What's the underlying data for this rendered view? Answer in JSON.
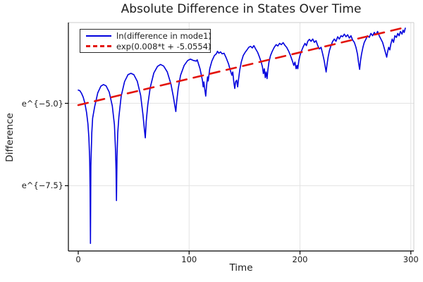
{
  "chart_data": {
    "type": "line",
    "title": "Absolute Difference in States Over Time",
    "xlabel": "Time",
    "ylabel": "Difference",
    "x_axis": {
      "lim": [
        -8.9,
        302.7
      ],
      "ticks": [
        {
          "value": 0,
          "label": "0"
        },
        {
          "value": 100,
          "label": "100"
        },
        {
          "value": 200,
          "label": "200"
        },
        {
          "value": 300,
          "label": "300"
        }
      ]
    },
    "y_axis": {
      "scale": "ln",
      "lim_ln": [
        -9.48,
        -2.55
      ],
      "ticks": [
        {
          "value": -5.0,
          "label": "e^{−5.0}"
        },
        {
          "value": -7.5,
          "label": "e^{−7.5}"
        }
      ]
    },
    "grid": true,
    "legend_position": "top-left",
    "colors": {
      "series1": "#0000dd",
      "series2": "#e3140c",
      "grid": "#e3e3e3",
      "frame": "#cccccc",
      "axis": "#000000",
      "text": "#1c1c1c"
    },
    "series": [
      {
        "name": "ln(difference in mode1)",
        "color": "#0000dd",
        "linestyle": "solid",
        "points": [
          [
            0,
            -4.6
          ],
          [
            1.5,
            -4.62
          ],
          [
            3,
            -4.7
          ],
          [
            4.5,
            -4.82
          ],
          [
            6,
            -5.0
          ],
          [
            7.5,
            -5.28
          ],
          [
            8.7,
            -5.62
          ],
          [
            9.6,
            -6.05
          ],
          [
            10.3,
            -6.7
          ],
          [
            10.7,
            -7.6
          ],
          [
            11,
            -9.25
          ],
          [
            11.4,
            -6.9
          ],
          [
            12.2,
            -5.9
          ],
          [
            13,
            -5.45
          ],
          [
            14.8,
            -5.1
          ],
          [
            17.6,
            -4.68
          ],
          [
            20.4,
            -4.48
          ],
          [
            22.8,
            -4.43
          ],
          [
            25.1,
            -4.47
          ],
          [
            27.9,
            -4.66
          ],
          [
            30.7,
            -5.08
          ],
          [
            32.6,
            -5.65
          ],
          [
            33.6,
            -6.4
          ],
          [
            34.1,
            -7.0
          ],
          [
            34.5,
            -7.95
          ],
          [
            35.0,
            -6.6
          ],
          [
            35.6,
            -5.9
          ],
          [
            36.6,
            -5.42
          ],
          [
            38.7,
            -4.78
          ],
          [
            41.8,
            -4.34
          ],
          [
            44.9,
            -4.13
          ],
          [
            47.5,
            -4.09
          ],
          [
            50.1,
            -4.13
          ],
          [
            53.2,
            -4.33
          ],
          [
            56.3,
            -4.76
          ],
          [
            58.4,
            -5.35
          ],
          [
            59.5,
            -5.75
          ],
          [
            60.5,
            -6.05
          ],
          [
            61.3,
            -5.55
          ],
          [
            62.7,
            -5.05
          ],
          [
            64.9,
            -4.52
          ],
          [
            68.2,
            -4.08
          ],
          [
            71.5,
            -3.88
          ],
          [
            74.2,
            -3.82
          ],
          [
            77,
            -3.87
          ],
          [
            80.3,
            -4.05
          ],
          [
            83.6,
            -4.42
          ],
          [
            85.8,
            -4.8
          ],
          [
            87,
            -5.05
          ],
          [
            88,
            -5.25
          ],
          [
            88.8,
            -4.95
          ],
          [
            90.2,
            -4.55
          ],
          [
            92.3,
            -4.15
          ],
          [
            95.5,
            -3.85
          ],
          [
            98.7,
            -3.7
          ],
          [
            101.2,
            -3.66
          ],
          [
            103.9,
            -3.7
          ],
          [
            106.5,
            -3.72
          ],
          [
            107.3,
            -3.68
          ],
          [
            109.8,
            -3.95
          ],
          [
            112,
            -4.3
          ],
          [
            112.7,
            -4.5
          ],
          [
            113.3,
            -4.35
          ],
          [
            114.2,
            -4.6
          ],
          [
            115,
            -4.78
          ],
          [
            115.8,
            -4.45
          ],
          [
            116.6,
            -4.2
          ],
          [
            117.2,
            -4.32
          ],
          [
            118.6,
            -3.95
          ],
          [
            120.5,
            -3.72
          ],
          [
            122.8,
            -3.55
          ],
          [
            124.5,
            -3.5
          ],
          [
            125.6,
            -3.42
          ],
          [
            126.8,
            -3.48
          ],
          [
            128.3,
            -3.44
          ],
          [
            129.8,
            -3.5
          ],
          [
            131.5,
            -3.48
          ],
          [
            133.4,
            -3.62
          ],
          [
            135.5,
            -3.8
          ],
          [
            137.2,
            -4.0
          ],
          [
            138.6,
            -4.15
          ],
          [
            139.4,
            -4.05
          ],
          [
            140.3,
            -4.35
          ],
          [
            141.2,
            -4.55
          ],
          [
            141.9,
            -4.35
          ],
          [
            142.9,
            -4.3
          ],
          [
            143.8,
            -4.5
          ],
          [
            144.5,
            -4.3
          ],
          [
            145.6,
            -4.0
          ],
          [
            147,
            -3.75
          ],
          [
            148.8,
            -3.55
          ],
          [
            150.6,
            -3.45
          ],
          [
            152.2,
            -3.38
          ],
          [
            153.8,
            -3.3
          ],
          [
            155.4,
            -3.27
          ],
          [
            157,
            -3.32
          ],
          [
            158.4,
            -3.25
          ],
          [
            160,
            -3.35
          ],
          [
            161.8,
            -3.45
          ],
          [
            163.5,
            -3.6
          ],
          [
            165,
            -3.75
          ],
          [
            166.2,
            -3.9
          ],
          [
            167,
            -4.1
          ],
          [
            167.8,
            -3.95
          ],
          [
            168.7,
            -4.22
          ],
          [
            169.5,
            -4.05
          ],
          [
            170.3,
            -4.25
          ],
          [
            171,
            -4.0
          ],
          [
            172,
            -3.75
          ],
          [
            173.4,
            -3.55
          ],
          [
            175,
            -3.42
          ],
          [
            176.8,
            -3.3
          ],
          [
            178.5,
            -3.22
          ],
          [
            180,
            -3.26
          ],
          [
            181.6,
            -3.18
          ],
          [
            183.2,
            -3.22
          ],
          [
            184.8,
            -3.16
          ],
          [
            186.4,
            -3.24
          ],
          [
            188,
            -3.3
          ],
          [
            189.8,
            -3.42
          ],
          [
            191.4,
            -3.55
          ],
          [
            193,
            -3.7
          ],
          [
            194.4,
            -3.85
          ],
          [
            195.5,
            -3.75
          ],
          [
            196.5,
            -3.95
          ],
          [
            197.3,
            -3.85
          ],
          [
            198,
            -3.95
          ],
          [
            199,
            -3.7
          ],
          [
            200,
            -3.55
          ],
          [
            201.5,
            -3.4
          ],
          [
            203,
            -3.28
          ],
          [
            204.5,
            -3.18
          ],
          [
            205.8,
            -3.25
          ],
          [
            207,
            -3.12
          ],
          [
            208.5,
            -3.06
          ],
          [
            210,
            -3.12
          ],
          [
            211.5,
            -3.05
          ],
          [
            213,
            -3.15
          ],
          [
            214.5,
            -3.1
          ],
          [
            216,
            -3.25
          ],
          [
            217.5,
            -3.35
          ],
          [
            219,
            -3.3
          ],
          [
            220.5,
            -3.5
          ],
          [
            221.8,
            -3.7
          ],
          [
            222.8,
            -3.9
          ],
          [
            223.6,
            -4.05
          ],
          [
            224.3,
            -3.85
          ],
          [
            225.4,
            -3.6
          ],
          [
            226.6,
            -3.4
          ],
          [
            228,
            -3.25
          ],
          [
            229.5,
            -3.12
          ],
          [
            231,
            -3.05
          ],
          [
            232.5,
            -3.12
          ],
          [
            234,
            -2.98
          ],
          [
            235.5,
            -3.05
          ],
          [
            237,
            -2.95
          ],
          [
            238.5,
            -2.98
          ],
          [
            240,
            -2.9
          ],
          [
            241.5,
            -2.98
          ],
          [
            243,
            -2.92
          ],
          [
            244.5,
            -3.02
          ],
          [
            246,
            -2.95
          ],
          [
            247.5,
            -3.08
          ],
          [
            249,
            -3.15
          ],
          [
            250.5,
            -3.3
          ],
          [
            251.8,
            -3.5
          ],
          [
            252.8,
            -3.75
          ],
          [
            253.8,
            -3.97
          ],
          [
            254.6,
            -3.7
          ],
          [
            255.6,
            -3.5
          ],
          [
            256.8,
            -3.3
          ],
          [
            258,
            -3.15
          ],
          [
            259.5,
            -3.05
          ],
          [
            261,
            -2.95
          ],
          [
            262.5,
            -3.0
          ],
          [
            264,
            -2.88
          ],
          [
            265.5,
            -2.95
          ],
          [
            267,
            -2.85
          ],
          [
            268.5,
            -2.92
          ],
          [
            270,
            -2.82
          ],
          [
            271.5,
            -2.95
          ],
          [
            273,
            -3.05
          ],
          [
            274.5,
            -3.15
          ],
          [
            275.8,
            -3.3
          ],
          [
            277,
            -3.45
          ],
          [
            278.2,
            -3.6
          ],
          [
            279,
            -3.45
          ],
          [
            280,
            -3.3
          ],
          [
            281,
            -3.38
          ],
          [
            282,
            -3.2
          ],
          [
            283.2,
            -3.05
          ],
          [
            284.4,
            -3.15
          ],
          [
            285.6,
            -2.95
          ],
          [
            287,
            -3.0
          ],
          [
            288.2,
            -2.88
          ],
          [
            289.4,
            -2.95
          ],
          [
            290.6,
            -2.82
          ],
          [
            292,
            -2.9
          ],
          [
            293,
            -2.78
          ],
          [
            294,
            -2.85
          ],
          [
            295,
            -2.72
          ]
        ]
      },
      {
        "name": "exp(0.008*t + -5.0554)",
        "color": "#e3140c",
        "linestyle": "dash",
        "fit_slope": 0.008,
        "fit_intercept": -5.0554,
        "points": [
          [
            0,
            -5.0554
          ],
          [
            295,
            -2.6954
          ]
        ]
      }
    ]
  }
}
